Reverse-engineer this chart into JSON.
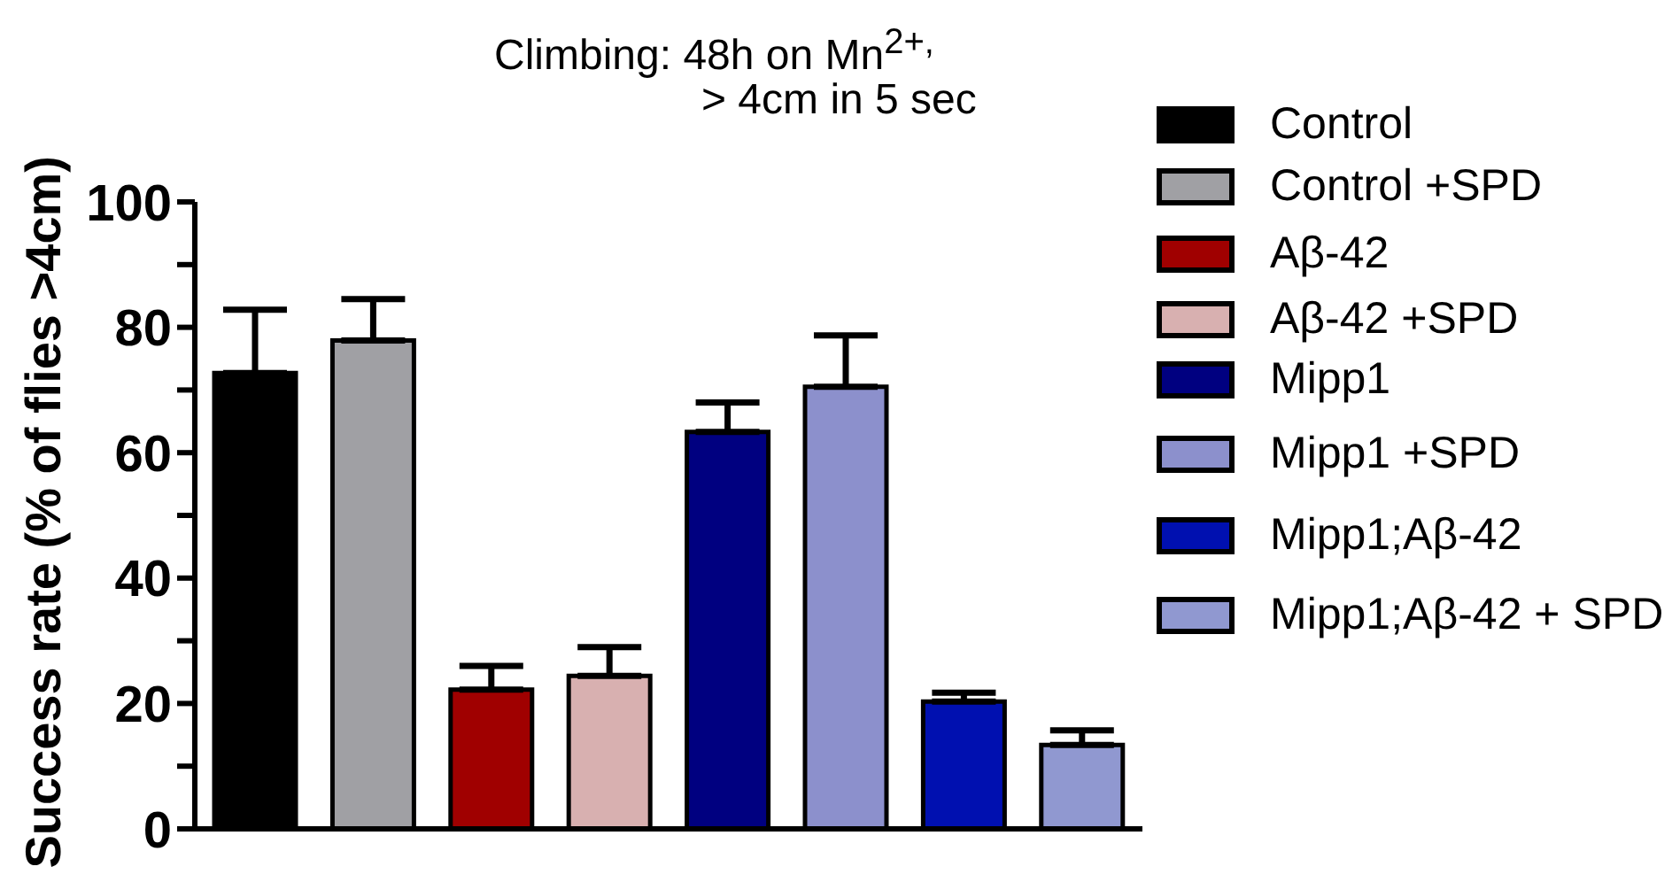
{
  "chart_data": {
    "type": "bar",
    "title": "Climbing: 48h on Mn$^{2+,}$\n> 4cm in 5 sec",
    "ylabel": "Success rate (% of flies >4cm)",
    "categories": [
      null
    ],
    "series": [
      {
        "name": "Control",
        "color": "#000000",
        "values": [
          72.7
        ],
        "errors": [
          [
            72.7,
            82.8
          ]
        ]
      },
      {
        "name": "Control +SPD",
        "color": "#a0a0a4",
        "values": [
          77.9
        ],
        "errors": [
          [
            77.9,
            84.5
          ]
        ]
      },
      {
        "name": "Aβ-42",
        "color": "#a00000",
        "values": [
          22.2
        ],
        "errors": [
          [
            22.2,
            26.0
          ]
        ]
      },
      {
        "name": "Aβ-42 +SPD",
        "color": "#d8b0b0",
        "values": [
          24.4
        ],
        "errors": [
          [
            24.4,
            29.0
          ]
        ]
      },
      {
        "name": "Mipp1",
        "color": "#000080",
        "values": [
          63.3
        ],
        "errors": [
          [
            63.3,
            68.0
          ]
        ]
      },
      {
        "name": "Mipp1 +SPD",
        "color": "#8c90cc",
        "values": [
          70.5
        ],
        "errors": [
          [
            70.5,
            78.7
          ]
        ]
      },
      {
        "name": "Mipp1;Aβ-42",
        "color": "#0010b0",
        "values": [
          20.3
        ],
        "errors": [
          [
            20.3,
            21.7
          ]
        ]
      },
      {
        "name": "Mipp1;Aβ-42 + SPD",
        "color": "#9098d0",
        "values": [
          13.4
        ],
        "errors": [
          [
            13.4,
            15.7
          ]
        ]
      }
    ],
    "ylim": [
      0,
      100
    ],
    "yticks": [
      0,
      {
        "value": 10,
        "label": null
      },
      20,
      {
        "value": 30,
        "label": null
      },
      40,
      {
        "value": 50,
        "label": null
      },
      60,
      {
        "value": 70,
        "label": null
      },
      80,
      {
        "value": 90,
        "label": null
      },
      100
    ],
    "legend": "top right"
  }
}
